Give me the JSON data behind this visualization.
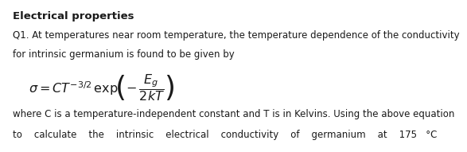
{
  "title": "Electrical properties",
  "line1": "Q1. At temperatures near room temperature, the temperature dependence of the conductivity",
  "line2": "for intrinsic germanium is found to be given by",
  "equation": "$\\sigma = CT^{-3/2}\\,\\mathrm{exp}\\!\\left(-\\,\\dfrac{E_g}{2kT}\\right)$",
  "line3": "where C is a temperature-independent constant and T is in Kelvins. Using the above equation",
  "line4": "to    calculate    the    intrinsic    electrical    conductivity    of    germanium    at    175   °C",
  "bg_color": "#ffffff",
  "text_color": "#1a1a1a",
  "font_size": 8.5,
  "title_font_size": 9.5,
  "eq_font_size": 11.5
}
